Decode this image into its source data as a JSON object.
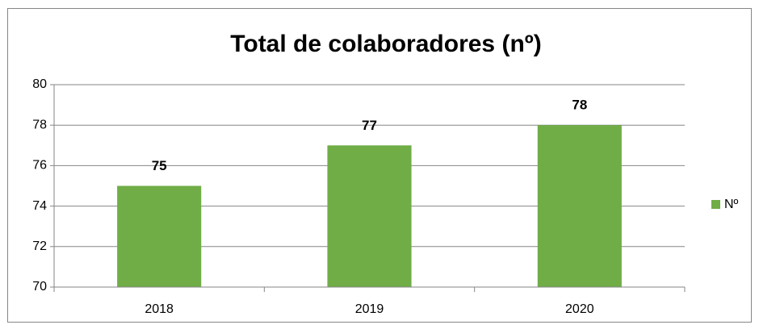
{
  "chart_data": {
    "type": "bar",
    "title": "Total de colaboradores (nº)",
    "categories": [
      "2018",
      "2019",
      "2020"
    ],
    "series": [
      {
        "name": "Nº",
        "color": "#70ad47",
        "values": [
          75,
          77,
          78
        ]
      }
    ],
    "ylim": [
      70,
      80
    ],
    "yticks": [
      70,
      72,
      74,
      76,
      78,
      80
    ],
    "grid": true,
    "legend": "right"
  }
}
